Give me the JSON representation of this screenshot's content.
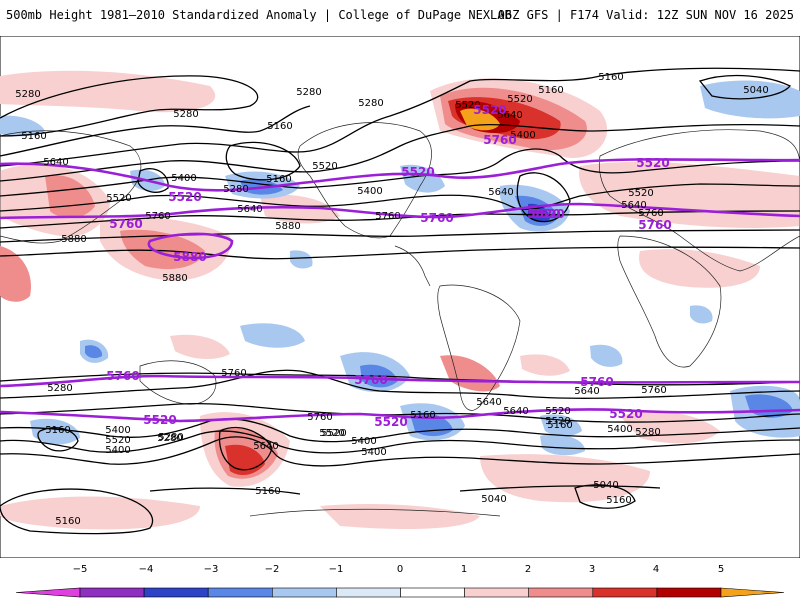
{
  "header": {
    "title": "500mb Height 1981–2010 Standardized Anomaly | College of DuPage NEXLAB",
    "run_info": "06Z GFS | F174 Valid: 12Z SUN NOV 16 2025"
  },
  "colorbar": {
    "ticks": [
      "−5",
      "−4",
      "−3",
      "−2",
      "−1",
      "0",
      "1",
      "2",
      "3",
      "4",
      "5"
    ],
    "colors": [
      "#e040e0",
      "#8e2fbf",
      "#2d43c8",
      "#5a86e6",
      "#a9c8f0",
      "#dbe8f6",
      "#ffffff",
      "#f8d0d0",
      "#ef8d8d",
      "#d9312b",
      "#b30000",
      "#f4a11b"
    ]
  },
  "contour_labels": {
    "black": [
      "5160",
      "5280",
      "5280",
      "5280",
      "5160",
      "5640",
      "5400",
      "5520",
      "5760",
      "5880",
      "5880",
      "5280",
      "5160",
      "5640",
      "5400",
      "5520",
      "5280",
      "5520",
      "5640",
      "5760",
      "5880",
      "5160",
      "5040",
      "5520",
      "5640",
      "5760",
      "5160",
      "5400",
      "5640",
      "5520",
      "5280",
      "5760",
      "5640",
      "5280",
      "5400",
      "5520",
      "5160",
      "5640",
      "5760",
      "5520",
      "5400",
      "5160",
      "5040",
      "5160",
      "5280",
      "5400",
      "5520",
      "5640",
      "5760",
      "5160",
      "5160",
      "5040",
      "5160",
      "5280",
      "5400",
      "5520",
      "5640",
      "5400",
      "5520"
    ],
    "purple": [
      "5520",
      "5760",
      "5880",
      "5520",
      "5760",
      "5520",
      "5760",
      "5520",
      "5760",
      "5760",
      "5520",
      "5760",
      "5520",
      "5520",
      "5520",
      "5760",
      "5520"
    ]
  },
  "colors": {
    "purple_contour": "#9b1fd6",
    "black_contour": "#000000",
    "land_outline": "#222222"
  }
}
